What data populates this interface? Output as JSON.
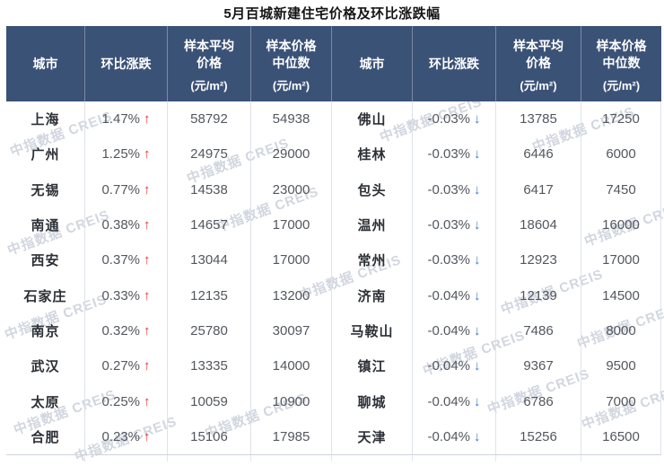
{
  "title": "5月百城新建住宅价格及环比涨跌幅",
  "watermark": {
    "text": "中指数据 CREIS"
  },
  "colors": {
    "header_bg": "#3B5277",
    "up_arrow": "#E8322A",
    "down_arrow": "#3A7CD5",
    "watermark": "#919EB2"
  },
  "table": {
    "headers": [
      {
        "label": "城市",
        "unit": ""
      },
      {
        "label": "环比涨跌",
        "unit": ""
      },
      {
        "label": "样本平均\n价格",
        "unit": "(元/m²)"
      },
      {
        "label": "样本价格\n中位数",
        "unit": "(元/m²)"
      }
    ],
    "left_rows": [
      {
        "city": "上海",
        "change": "1.47%",
        "arrow": "↑",
        "dir": "up",
        "avg_price": "58792",
        "median_price": "54938"
      },
      {
        "city": "广州",
        "change": "1.25%",
        "arrow": "↑",
        "dir": "up",
        "avg_price": "24975",
        "median_price": "29000"
      },
      {
        "city": "无锡",
        "change": "0.77%",
        "arrow": "↑",
        "dir": "up",
        "avg_price": "14538",
        "median_price": "23000"
      },
      {
        "city": "南通",
        "change": "0.38%",
        "arrow": "↑",
        "dir": "up",
        "avg_price": "14657",
        "median_price": "17000"
      },
      {
        "city": "西安",
        "change": "0.37%",
        "arrow": "↑",
        "dir": "up",
        "avg_price": "13044",
        "median_price": "17000"
      },
      {
        "city": "石家庄",
        "change": "0.33%",
        "arrow": "↑",
        "dir": "up",
        "avg_price": "12135",
        "median_price": "13200"
      },
      {
        "city": "南京",
        "change": "0.32%",
        "arrow": "↑",
        "dir": "up",
        "avg_price": "25780",
        "median_price": "30097"
      },
      {
        "city": "武汉",
        "change": "0.27%",
        "arrow": "↑",
        "dir": "up",
        "avg_price": "13335",
        "median_price": "14000"
      },
      {
        "city": "太原",
        "change": "0.25%",
        "arrow": "↑",
        "dir": "up",
        "avg_price": "10059",
        "median_price": "10900"
      },
      {
        "city": "合肥",
        "change": "0.23%",
        "arrow": "↑",
        "dir": "up",
        "avg_price": "15106",
        "median_price": "17985"
      }
    ],
    "right_rows": [
      {
        "city": "佛山",
        "change": "-0.03%",
        "arrow": "↓",
        "dir": "down",
        "avg_price": "13785",
        "median_price": "17250"
      },
      {
        "city": "桂林",
        "change": "-0.03%",
        "arrow": "↓",
        "dir": "down",
        "avg_price": "6446",
        "median_price": "6000"
      },
      {
        "city": "包头",
        "change": "-0.03%",
        "arrow": "↓",
        "dir": "down",
        "avg_price": "6417",
        "median_price": "7450"
      },
      {
        "city": "温州",
        "change": "-0.03%",
        "arrow": "↓",
        "dir": "down",
        "avg_price": "18604",
        "median_price": "16000"
      },
      {
        "city": "常州",
        "change": "-0.03%",
        "arrow": "↓",
        "dir": "down",
        "avg_price": "12923",
        "median_price": "17000"
      },
      {
        "city": "济南",
        "change": "-0.04%",
        "arrow": "↓",
        "dir": "down",
        "avg_price": "12139",
        "median_price": "14500"
      },
      {
        "city": "马鞍山",
        "change": "-0.04%",
        "arrow": "↓",
        "dir": "down",
        "avg_price": "7486",
        "median_price": "8000"
      },
      {
        "city": "镇江",
        "change": "-0.04%",
        "arrow": "↓",
        "dir": "down",
        "avg_price": "9367",
        "median_price": "9500"
      },
      {
        "city": "聊城",
        "change": "-0.04%",
        "arrow": "↓",
        "dir": "down",
        "avg_price": "6786",
        "median_price": "7000"
      },
      {
        "city": "天津",
        "change": "-0.04%",
        "arrow": "↓",
        "dir": "down",
        "avg_price": "15256",
        "median_price": "16500"
      }
    ]
  },
  "chart_data": {
    "type": "table",
    "title": "5月百城新建住宅价格及环比涨跌幅",
    "columns": [
      "城市",
      "环比涨跌",
      "样本平均价格(元/m²)",
      "样本价格中位数(元/m²)"
    ],
    "rows": [
      [
        "上海",
        "1.47%↑",
        58792,
        54938
      ],
      [
        "广州",
        "1.25%↑",
        24975,
        29000
      ],
      [
        "无锡",
        "0.77%↑",
        14538,
        23000
      ],
      [
        "南通",
        "0.38%↑",
        14657,
        17000
      ],
      [
        "西安",
        "0.37%↑",
        13044,
        17000
      ],
      [
        "石家庄",
        "0.33%↑",
        12135,
        13200
      ],
      [
        "南京",
        "0.32%↑",
        25780,
        30097
      ],
      [
        "武汉",
        "0.27%↑",
        13335,
        14000
      ],
      [
        "太原",
        "0.25%↑",
        10059,
        10900
      ],
      [
        "合肥",
        "0.23%↑",
        15106,
        17985
      ],
      [
        "佛山",
        "-0.03%↓",
        13785,
        17250
      ],
      [
        "桂林",
        "-0.03%↓",
        6446,
        6000
      ],
      [
        "包头",
        "-0.03%↓",
        6417,
        7450
      ],
      [
        "温州",
        "-0.03%↓",
        18604,
        16000
      ],
      [
        "常州",
        "-0.03%↓",
        12923,
        17000
      ],
      [
        "济南",
        "-0.04%↓",
        12139,
        14500
      ],
      [
        "马鞍山",
        "-0.04%↓",
        7486,
        8000
      ],
      [
        "镇江",
        "-0.04%↓",
        9367,
        9500
      ],
      [
        "聊城",
        "-0.04%↓",
        6786,
        7000
      ],
      [
        "天津",
        "-0.04%↓",
        15256,
        16500
      ]
    ]
  }
}
